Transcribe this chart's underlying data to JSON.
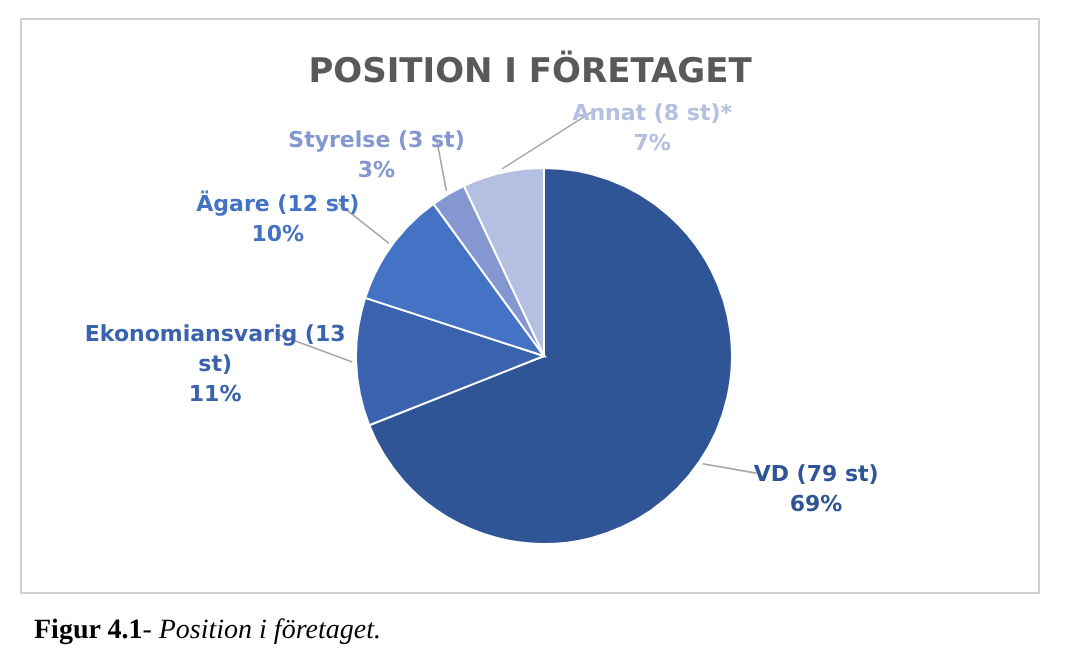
{
  "chart_data": {
    "type": "pie",
    "title": "POSITION I FÖRETAGET",
    "categories": [
      "VD (79 st)",
      "Ekonomiansvarig (13 st)",
      "Ägare (12 st)",
      "Styrelse (3 st)",
      "Annat (8 st)*"
    ],
    "values": [
      69,
      11,
      10,
      3,
      7
    ],
    "value_labels": [
      "69%",
      "11%",
      "10%",
      "3%",
      "7%"
    ],
    "colors": [
      "#2f5597",
      "#3a62ad",
      "#4472c4",
      "#8497d0",
      "#b4bfe2"
    ],
    "legend": false,
    "annotations": [
      "Figur 4.1- Position i företaget."
    ]
  }
}
